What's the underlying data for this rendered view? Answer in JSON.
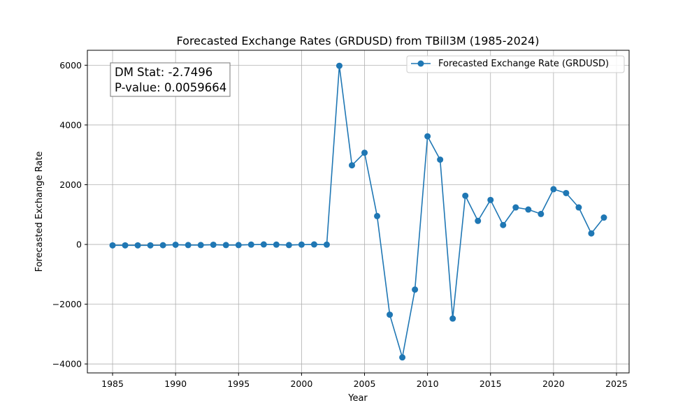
{
  "chart_data": {
    "type": "line",
    "title": "Forecasted Exchange Rates (GRDUSD) from TBill3M (1985-2024)",
    "xlabel": "Year",
    "ylabel": "Forecasted Exchange Rate",
    "xlim": [
      1983,
      2026
    ],
    "ylim": [
      -4300,
      6500
    ],
    "x_ticks": [
      1985,
      1990,
      1995,
      2000,
      2005,
      2010,
      2015,
      2020,
      2025
    ],
    "x_tick_labels": [
      "1985",
      "1990",
      "1995",
      "2000",
      "2005",
      "2010",
      "2015",
      "2020",
      "2025"
    ],
    "y_ticks": [
      -4000,
      -2000,
      0,
      2000,
      4000,
      6000
    ],
    "y_tick_labels": [
      "−4000",
      "−2000",
      "0",
      "2000",
      "4000",
      "6000"
    ],
    "grid": true,
    "legend_position": "top-right",
    "series": [
      {
        "name": "Forecasted Exchange Rate (GRDUSD)",
        "color": "#1f77b4",
        "marker": "circle",
        "x": [
          1985,
          1986,
          1987,
          1988,
          1989,
          1990,
          1991,
          1992,
          1993,
          1994,
          1995,
          1996,
          1997,
          1998,
          1999,
          2000,
          2001,
          2002,
          2003,
          2004,
          2005,
          2006,
          2007,
          2008,
          2009,
          2010,
          2011,
          2012,
          2013,
          2014,
          2015,
          2016,
          2017,
          2018,
          2019,
          2020,
          2021,
          2022,
          2023,
          2024
        ],
        "y": [
          -30,
          -30,
          -30,
          -30,
          -25,
          -10,
          -20,
          -20,
          -10,
          -20,
          -20,
          -5,
          0,
          -5,
          -20,
          -5,
          0,
          -5,
          5980,
          2650,
          3070,
          950,
          -2350,
          -3780,
          -1510,
          3620,
          2840,
          -2480,
          1630,
          790,
          1490,
          650,
          1240,
          1170,
          1020,
          1850,
          1720,
          1240,
          370,
          900
        ]
      }
    ]
  },
  "annotation": {
    "line1": "DM Stat: -2.7496",
    "line2": "P-value: 0.0059664"
  }
}
